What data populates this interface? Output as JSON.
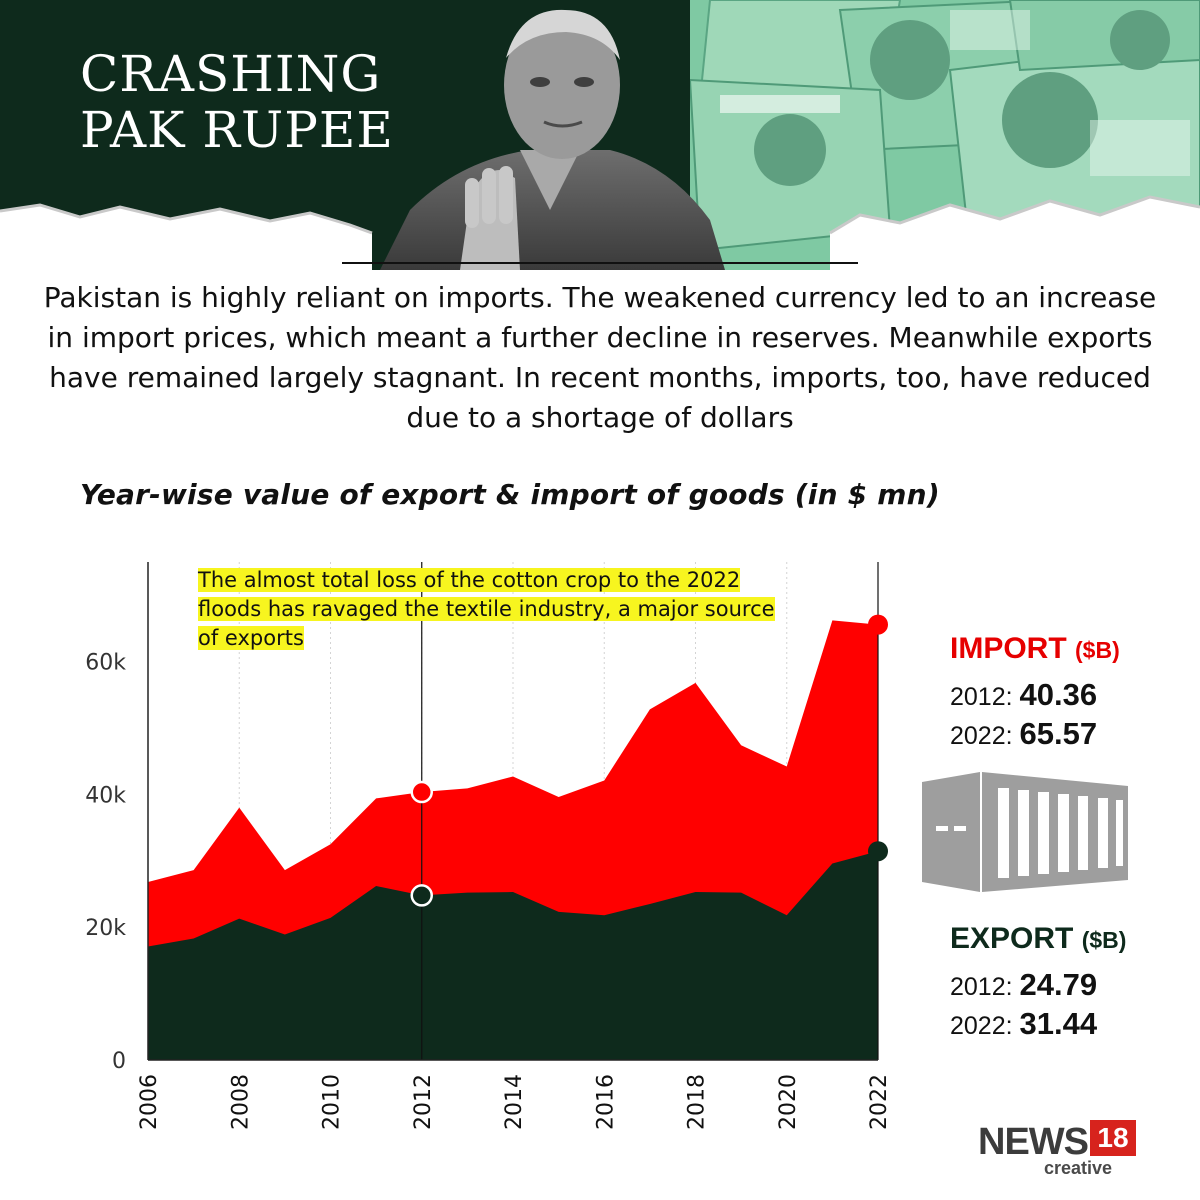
{
  "header": {
    "title_line1": "CRASHING",
    "title_line2": "PAK RUPEE"
  },
  "intro": "Pakistan is highly reliant on imports. The weakened currency led to an increase in import prices, which meant a further decline in reserves. Meanwhile exports have remained largely stagnant. In recent months, imports, too, have reduced due to a shortage of dollars",
  "annotation": "The almost total loss of the cotton crop to the 2022 floods has ravaged the textile industry, a major source of exports",
  "legend": {
    "import_heading": "IMPORT",
    "import_unit": "($B)",
    "import_2012_label": "2012:",
    "import_2012_value": "40.36",
    "import_2022_label": "2022:",
    "import_2022_value": "65.57",
    "export_heading": "EXPORT",
    "export_unit": "($B)",
    "export_2012_label": "2012:",
    "export_2012_value": "24.79",
    "export_2022_label": "2022:",
    "export_2022_value": "31.44"
  },
  "brand": {
    "name": "NEWS",
    "number": "18",
    "sub": "creative"
  },
  "colors": {
    "header_bg": "#0e2a1c",
    "import": "#ff0000",
    "export": "#0e2a1c",
    "highlight": "#f7f51f"
  },
  "icons": [
    "banknote-collage",
    "politician-portrait",
    "shipping-container-icon"
  ],
  "chart_data": {
    "type": "area",
    "title": "Year-wise value of export & import of goods (in $ mn)",
    "xlabel": "",
    "ylabel": "",
    "x": [
      2006,
      2007,
      2008,
      2009,
      2010,
      2011,
      2012,
      2013,
      2014,
      2015,
      2016,
      2017,
      2018,
      2019,
      2020,
      2021,
      2022
    ],
    "series": [
      {
        "name": "IMPORT",
        "values": [
          26800,
          28600,
          38000,
          28600,
          32500,
          39400,
          40360,
          40900,
          42700,
          39600,
          42100,
          52800,
          56800,
          47400,
          44200,
          66200,
          65570
        ]
      },
      {
        "name": "EXPORT",
        "values": [
          17100,
          18300,
          21300,
          18900,
          21400,
          26200,
          24790,
          25200,
          25300,
          22300,
          21800,
          23500,
          25300,
          25200,
          21800,
          29600,
          31440
        ]
      }
    ],
    "xticks": [
      "2006",
      "2008",
      "2010",
      "2012",
      "2014",
      "2016",
      "2018",
      "2020",
      "2022"
    ],
    "yticks": [
      "0",
      "20k",
      "40k",
      "60k"
    ],
    "ylim": [
      0,
      75000
    ],
    "xlim": [
      2006,
      2022
    ],
    "highlight_years": [
      2012,
      2022
    ],
    "grid": "vertical"
  }
}
